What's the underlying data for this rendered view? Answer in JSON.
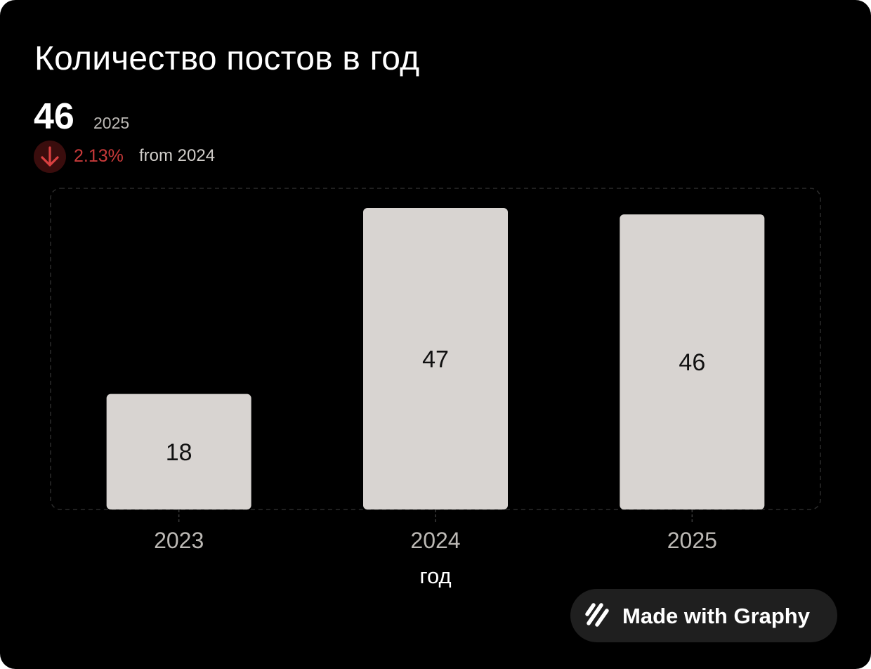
{
  "title": "Количество постов в год",
  "kpi": {
    "value": "46",
    "period": "2025",
    "change_pct": "2.13%",
    "change_direction": "down",
    "change_from": "from 2024",
    "down_color": "#c83a3a"
  },
  "chart_data": {
    "type": "bar",
    "title": "Количество постов в год",
    "categories": [
      "2023",
      "2024",
      "2025"
    ],
    "values": [
      18,
      47,
      46
    ],
    "data_labels": [
      "18",
      "47",
      "46"
    ],
    "xlabel": "год",
    "ylabel": "",
    "ylim": [
      0,
      48.2
    ],
    "grid": false,
    "bar_color": "#d8d4d1"
  },
  "badge": {
    "label": "Made with Graphy",
    "icon": "graphy-logo-icon"
  }
}
